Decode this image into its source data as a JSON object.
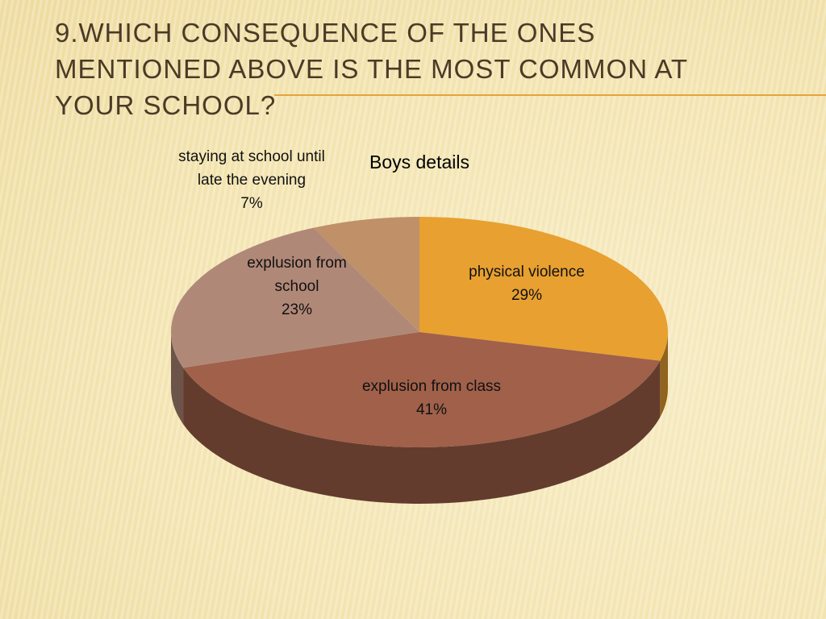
{
  "slide_title": "9.WHICH CONSEQUENCE OF THE ONES MENTIONED ABOVE IS THE MOST COMMON AT YOUR SCHOOL?",
  "chart_data": {
    "type": "pie",
    "title": "Boys details",
    "categories": [
      "physical violence",
      "explusion from class",
      "explusion from school",
      "staying at school until late the evening"
    ],
    "values": [
      29,
      41,
      23,
      7
    ],
    "value_labels": [
      "29%",
      "41%",
      "23%",
      "7%"
    ],
    "colors": [
      "#e8a030",
      "#a0604a",
      "#b08878",
      "#c09068"
    ]
  }
}
